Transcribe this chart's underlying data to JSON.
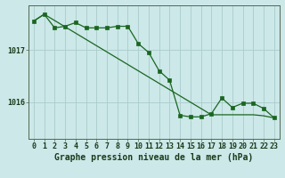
{
  "background_color": "#cce8e8",
  "grid_color": "#aacccc",
  "line_color": "#1a6620",
  "marker_color": "#1a6620",
  "xlabel": "Graphe pression niveau de la mer (hPa)",
  "xlabel_fontsize": 7,
  "tick_fontsize": 6,
  "ytick_labels": [
    "1016",
    "1017"
  ],
  "ytick_values": [
    1016.0,
    1017.0
  ],
  "ylim": [
    1015.3,
    1017.85
  ],
  "xlim": [
    -0.5,
    23.5
  ],
  "xtick_values": [
    0,
    1,
    2,
    3,
    4,
    5,
    6,
    7,
    8,
    9,
    10,
    11,
    12,
    13,
    14,
    15,
    16,
    17,
    18,
    19,
    20,
    21,
    22,
    23
  ],
  "line1_x": [
    0,
    1,
    2,
    3,
    4,
    5,
    6,
    7,
    8,
    9,
    10,
    11,
    12,
    13,
    14,
    15,
    16,
    17,
    18,
    19,
    20,
    21,
    22,
    23
  ],
  "line1_y": [
    1017.55,
    1017.68,
    1017.42,
    1017.45,
    1017.52,
    1017.42,
    1017.42,
    1017.42,
    1017.45,
    1017.45,
    1017.12,
    1016.95,
    1016.6,
    1016.42,
    1015.75,
    1015.72,
    1015.72,
    1015.78,
    1016.08,
    1015.9,
    1015.98,
    1015.98,
    1015.88,
    1015.7
  ],
  "line2_x": [
    0,
    1,
    2,
    3,
    4,
    5,
    6,
    7,
    8,
    9,
    10,
    11,
    12,
    13,
    14,
    15,
    16,
    17,
    18,
    19,
    20,
    21,
    22,
    23
  ],
  "line2_y": [
    1017.55,
    1017.68,
    1017.56,
    1017.44,
    1017.32,
    1017.2,
    1017.08,
    1016.96,
    1016.84,
    1016.72,
    1016.6,
    1016.48,
    1016.36,
    1016.24,
    1016.12,
    1016.0,
    1015.88,
    1015.76,
    1015.76,
    1015.76,
    1015.76,
    1015.76,
    1015.74,
    1015.7
  ],
  "marker_size": 2.5,
  "linewidth": 0.9
}
